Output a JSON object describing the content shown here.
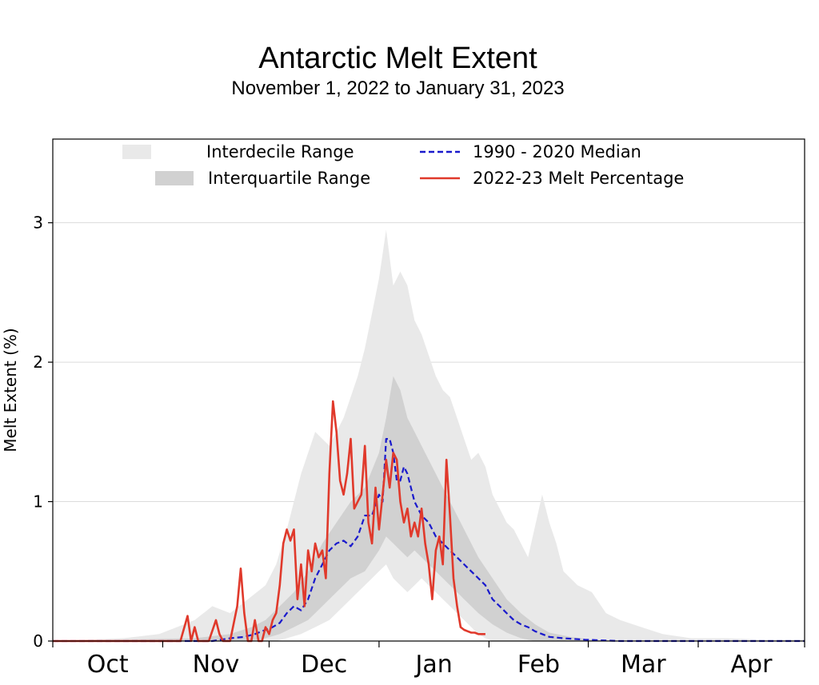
{
  "title": "Antarctic Melt Extent",
  "subtitle": "November 1, 2022 to January 31, 2023",
  "colors": {
    "interdecile": "#e9e9e9",
    "interquartile": "#d1d1d1",
    "median": "#1a1acc",
    "melt": "#e0392b",
    "grid": "#dcdcdc"
  },
  "chart_data": {
    "type": "line",
    "title": "Antarctic Melt Extent",
    "subtitle": "November 1, 2022 to January 31, 2023",
    "xlabel": "",
    "ylabel": "Melt Extent (%)",
    "months": [
      "Oct",
      "Nov",
      "Dec",
      "Jan",
      "Feb",
      "Mar",
      "Apr"
    ],
    "month_lengths": [
      31,
      30,
      31,
      31,
      28,
      31,
      30
    ],
    "x_unit": "days since October 1",
    "xlim": [
      0,
      212
    ],
    "ylim": [
      0,
      3.6
    ],
    "yticks": [
      0,
      1,
      2,
      3
    ],
    "grid": true,
    "legend_position": "top",
    "legend": [
      {
        "key": "interdecile",
        "label": "Interdecile Range"
      },
      {
        "key": "interquartile",
        "label": "Interquartile Range"
      },
      {
        "key": "median",
        "label": "1990 - 2020 Median"
      },
      {
        "key": "melt",
        "label": "2022-23 Melt Percentage"
      }
    ],
    "bands": [
      {
        "name": "Interdecile Range",
        "x": [
          0,
          20,
          30,
          35,
          40,
          45,
          50,
          55,
          60,
          63,
          66,
          70,
          74,
          78,
          82,
          86,
          88,
          90,
          92,
          94,
          96,
          98,
          100,
          102,
          104,
          106,
          108,
          110,
          112,
          114,
          116,
          118,
          120,
          122,
          124,
          126,
          128,
          130,
          134,
          138,
          140,
          142,
          144,
          148,
          152,
          156,
          160,
          166,
          172,
          180,
          190,
          200,
          212
        ],
        "lower": [
          0,
          0,
          0,
          0,
          0,
          0,
          0,
          0,
          0,
          0,
          0.02,
          0.05,
          0.1,
          0.15,
          0.25,
          0.35,
          0.4,
          0.45,
          0.5,
          0.55,
          0.45,
          0.4,
          0.35,
          0.4,
          0.45,
          0.4,
          0.35,
          0.3,
          0.25,
          0.2,
          0.15,
          0.1,
          0.05,
          0.02,
          0,
          0,
          0,
          0,
          0,
          0,
          0,
          0,
          0,
          0,
          0,
          0,
          0,
          0,
          0,
          0,
          0,
          0,
          0
        ],
        "upper": [
          0,
          0.02,
          0.05,
          0.1,
          0.15,
          0.25,
          0.2,
          0.3,
          0.4,
          0.55,
          0.8,
          1.2,
          1.5,
          1.4,
          1.6,
          1.9,
          2.1,
          2.35,
          2.6,
          2.95,
          2.55,
          2.65,
          2.55,
          2.3,
          2.2,
          2.05,
          1.9,
          1.8,
          1.75,
          1.6,
          1.45,
          1.3,
          1.35,
          1.25,
          1.05,
          0.95,
          0.85,
          0.8,
          0.6,
          1.05,
          0.85,
          0.7,
          0.5,
          0.4,
          0.35,
          0.2,
          0.15,
          0.1,
          0.05,
          0.02,
          0.02,
          0.01,
          0.01
        ]
      },
      {
        "name": "Interquartile Range",
        "x": [
          0,
          40,
          50,
          56,
          60,
          64,
          68,
          72,
          76,
          80,
          84,
          88,
          92,
          94,
          96,
          98,
          100,
          102,
          104,
          106,
          108,
          110,
          112,
          114,
          116,
          118,
          120,
          124,
          128,
          132,
          136,
          140,
          146,
          152,
          160,
          212
        ],
        "lower": [
          0,
          0,
          0,
          0,
          0.02,
          0.05,
          0.1,
          0.15,
          0.25,
          0.35,
          0.45,
          0.5,
          0.65,
          0.75,
          0.7,
          0.65,
          0.6,
          0.65,
          0.6,
          0.55,
          0.5,
          0.45,
          0.4,
          0.35,
          0.3,
          0.25,
          0.2,
          0.12,
          0.06,
          0.02,
          0,
          0,
          0,
          0,
          0,
          0
        ],
        "upper": [
          0,
          0.02,
          0.05,
          0.1,
          0.15,
          0.25,
          0.35,
          0.5,
          0.7,
          0.85,
          1.0,
          1.1,
          1.35,
          1.6,
          1.9,
          1.8,
          1.6,
          1.5,
          1.4,
          1.3,
          1.2,
          1.1,
          1.0,
          0.9,
          0.8,
          0.7,
          0.6,
          0.45,
          0.3,
          0.2,
          0.12,
          0.06,
          0.03,
          0.01,
          0,
          0
        ]
      }
    ],
    "series": [
      {
        "name": "1990 - 2020 Median",
        "key": "median",
        "x": [
          0,
          45,
          50,
          54,
          57,
          60,
          62,
          64,
          66,
          68,
          70,
          72,
          74,
          76,
          78,
          80,
          82,
          84,
          86,
          88,
          90,
          92,
          93,
          94,
          95,
          96,
          97,
          98,
          99,
          100,
          101,
          102,
          104,
          106,
          108,
          110,
          112,
          114,
          116,
          118,
          120,
          122,
          124,
          126,
          128,
          130,
          132,
          134,
          136,
          138,
          140,
          144,
          150,
          160,
          170,
          212
        ],
        "y": [
          0,
          0,
          0.02,
          0.03,
          0.05,
          0.08,
          0.1,
          0.13,
          0.2,
          0.25,
          0.22,
          0.3,
          0.45,
          0.55,
          0.65,
          0.7,
          0.72,
          0.68,
          0.75,
          0.9,
          0.9,
          1.05,
          1.0,
          1.45,
          1.45,
          1.35,
          1.15,
          1.15,
          1.25,
          1.2,
          1.1,
          1.0,
          0.9,
          0.85,
          0.75,
          0.7,
          0.65,
          0.6,
          0.55,
          0.5,
          0.45,
          0.4,
          0.3,
          0.25,
          0.2,
          0.15,
          0.12,
          0.1,
          0.07,
          0.05,
          0.03,
          0.02,
          0.01,
          0,
          0,
          0
        ]
      },
      {
        "name": "2022-23 Melt Percentage",
        "key": "melt",
        "x": [
          0,
          36,
          38,
          39,
          40,
          41,
          42,
          43,
          44,
          46,
          47,
          48,
          49,
          50,
          52,
          53,
          54,
          55,
          56,
          57,
          58,
          59,
          60,
          61,
          62,
          63,
          64,
          65,
          66,
          67,
          68,
          69,
          70,
          71,
          72,
          73,
          74,
          75,
          76,
          77,
          78,
          79,
          80,
          81,
          82,
          83,
          84,
          85,
          86,
          87,
          88,
          89,
          90,
          91,
          92,
          93,
          94,
          95,
          96,
          97,
          98,
          99,
          100,
          101,
          102,
          103,
          104,
          105,
          106,
          107,
          108,
          109,
          110,
          111,
          112,
          113,
          114,
          115,
          116,
          117,
          118,
          119,
          120,
          121,
          122
        ],
        "y": [
          0,
          0,
          0.18,
          0.0,
          0.1,
          0.0,
          0.0,
          0.0,
          0.0,
          0.15,
          0.05,
          0.0,
          0.0,
          0.0,
          0.25,
          0.52,
          0.2,
          0.0,
          0.0,
          0.15,
          0.0,
          0.0,
          0.1,
          0.05,
          0.15,
          0.2,
          0.4,
          0.7,
          0.8,
          0.72,
          0.8,
          0.3,
          0.55,
          0.25,
          0.65,
          0.5,
          0.7,
          0.6,
          0.65,
          0.45,
          1.2,
          1.72,
          1.5,
          1.15,
          1.05,
          1.2,
          1.45,
          0.95,
          1.0,
          1.05,
          1.4,
          0.85,
          0.7,
          1.1,
          0.8,
          1.05,
          1.3,
          1.1,
          1.35,
          1.3,
          1.0,
          0.85,
          0.95,
          0.75,
          0.85,
          0.75,
          0.95,
          0.7,
          0.55,
          0.3,
          0.65,
          0.75,
          0.55,
          1.3,
          0.9,
          0.45,
          0.25,
          0.1,
          0.08,
          0.07,
          0.06,
          0.06,
          0.05,
          0.05,
          0.05
        ]
      }
    ]
  }
}
